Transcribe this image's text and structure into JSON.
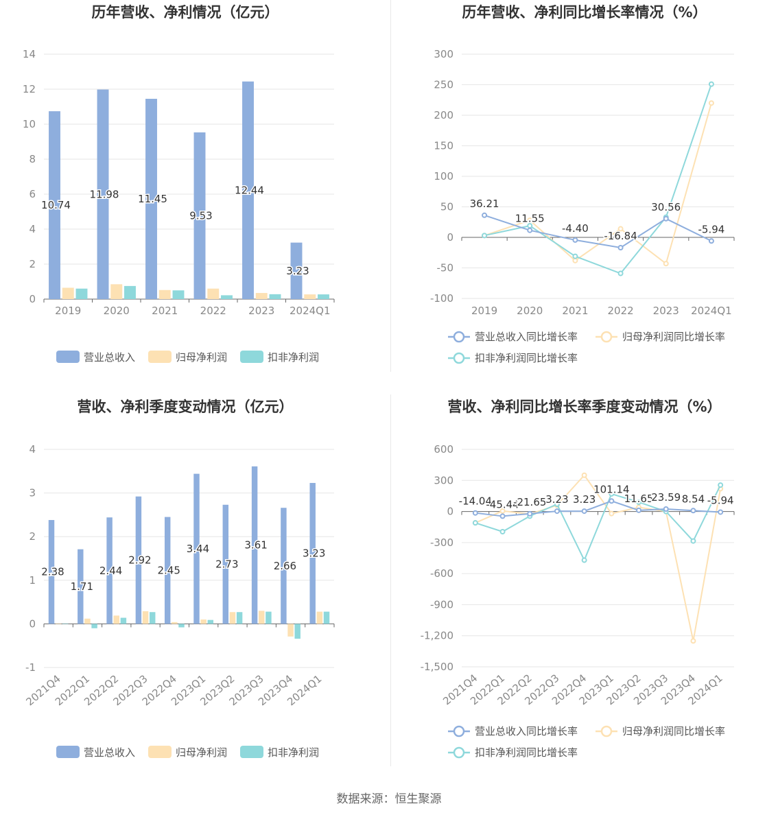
{
  "source": "数据来源：恒生聚源",
  "colors": {
    "revenue": "#8eaedd",
    "net_profit": "#fde1b3",
    "deducted_profit": "#8ed8db",
    "axis": "#666666",
    "grid": "#e6e6e6"
  },
  "chart_data": [
    {
      "type": "bar",
      "title": "历年营收、净利情况（亿元）",
      "categories": [
        "2019",
        "2020",
        "2021",
        "2022",
        "2023",
        "2024Q1"
      ],
      "ylim": [
        0,
        14
      ],
      "yticks": [
        0,
        2,
        4,
        6,
        8,
        10,
        12,
        14
      ],
      "legend": "bottom",
      "series": [
        {
          "name": "营业总收入",
          "values": [
            10.74,
            11.98,
            11.45,
            9.53,
            12.44,
            3.23
          ],
          "labels": [
            "10.74",
            "11.98",
            "11.45",
            "9.53",
            "12.44",
            "3.23"
          ]
        },
        {
          "name": "归母净利润",
          "values": [
            0.65,
            0.85,
            0.52,
            0.6,
            0.35,
            0.27
          ]
        },
        {
          "name": "扣非净利润",
          "values": [
            0.6,
            0.75,
            0.5,
            0.22,
            0.28,
            0.27
          ]
        }
      ]
    },
    {
      "type": "line",
      "title": "历年营收、净利同比增长率情况（%）",
      "categories": [
        "2019",
        "2020",
        "2021",
        "2022",
        "2023",
        "2024Q1"
      ],
      "ylim": [
        -100,
        300
      ],
      "yticks": [
        -100,
        -50,
        0,
        50,
        100,
        150,
        200,
        250,
        300
      ],
      "legend": "bottom",
      "series": [
        {
          "name": "营业总收入同比增长率",
          "values": [
            36.21,
            11.55,
            -4.4,
            -16.84,
            30.56,
            -5.94
          ],
          "labels": [
            "36.21",
            "11.55",
            "-4.40",
            "-16.84",
            "30.56",
            "-5.94"
          ]
        },
        {
          "name": "归母净利润同比增长率",
          "values": [
            3,
            28,
            -38,
            14,
            -43,
            220
          ]
        },
        {
          "name": "扣非净利润同比增长率",
          "values": [
            3,
            19,
            -31,
            -59,
            33,
            251
          ]
        }
      ]
    },
    {
      "type": "bar",
      "title": "营收、净利季度变动情况（亿元）",
      "categories": [
        "2021Q4",
        "2022Q1",
        "2022Q2",
        "2022Q3",
        "2022Q4",
        "2023Q1",
        "2023Q2",
        "2023Q3",
        "2023Q4",
        "2024Q1"
      ],
      "ylim": [
        -1,
        4
      ],
      "yticks": [
        -1,
        0,
        1,
        2,
        3,
        4
      ],
      "legend": "bottom",
      "series": [
        {
          "name": "营业总收入",
          "values": [
            2.38,
            1.71,
            2.44,
            2.92,
            2.45,
            3.44,
            2.73,
            3.61,
            2.66,
            3.23
          ],
          "labels": [
            "2.38",
            "1.71",
            "2.44",
            "2.92",
            "2.45",
            "3.44",
            "2.73",
            "3.61",
            "2.66",
            "3.23"
          ]
        },
        {
          "name": "归母净利润",
          "values": [
            0.01,
            0.12,
            0.19,
            0.29,
            0.04,
            0.1,
            0.27,
            0.3,
            -0.29,
            0.28
          ]
        },
        {
          "name": "扣非净利润",
          "values": [
            0.01,
            -0.1,
            0.14,
            0.27,
            -0.08,
            0.09,
            0.27,
            0.28,
            -0.34,
            0.28
          ]
        }
      ]
    },
    {
      "type": "line",
      "title": "营收、净利同比增长率季度变动情况（%）",
      "categories": [
        "2021Q4",
        "2022Q1",
        "2022Q2",
        "2022Q3",
        "2022Q4",
        "2023Q1",
        "2023Q2",
        "2023Q3",
        "2023Q4",
        "2024Q1"
      ],
      "ylim": [
        -1500,
        600
      ],
      "yticks": [
        -1500,
        -1200,
        -900,
        -600,
        -300,
        0,
        300,
        600
      ],
      "ytick_labels": [
        "-1,500",
        "-1,200",
        "-900",
        "-600",
        "-300",
        "0",
        "300",
        "600"
      ],
      "legend": "bottom",
      "series": [
        {
          "name": "营业总收入同比增长率",
          "values": [
            -14.04,
            -45.44,
            -21.65,
            3.23,
            3.23,
            101.14,
            11.65,
            23.59,
            8.54,
            -5.94
          ],
          "labels": [
            "-14.04",
            "-45.44",
            "-21.65",
            "3.23",
            "3.23",
            "101.14",
            "11.65",
            "23.59",
            "8.54",
            "-5.94"
          ]
        },
        {
          "name": "归母净利润同比增长率",
          "values": [
            -110,
            5,
            -25,
            60,
            350,
            -20,
            40,
            0,
            -1250,
            220
          ]
        },
        {
          "name": "扣非净利润同比增长率",
          "values": [
            -110,
            -195,
            -45,
            70,
            -470,
            170,
            90,
            0,
            -285,
            255
          ]
        }
      ]
    }
  ]
}
